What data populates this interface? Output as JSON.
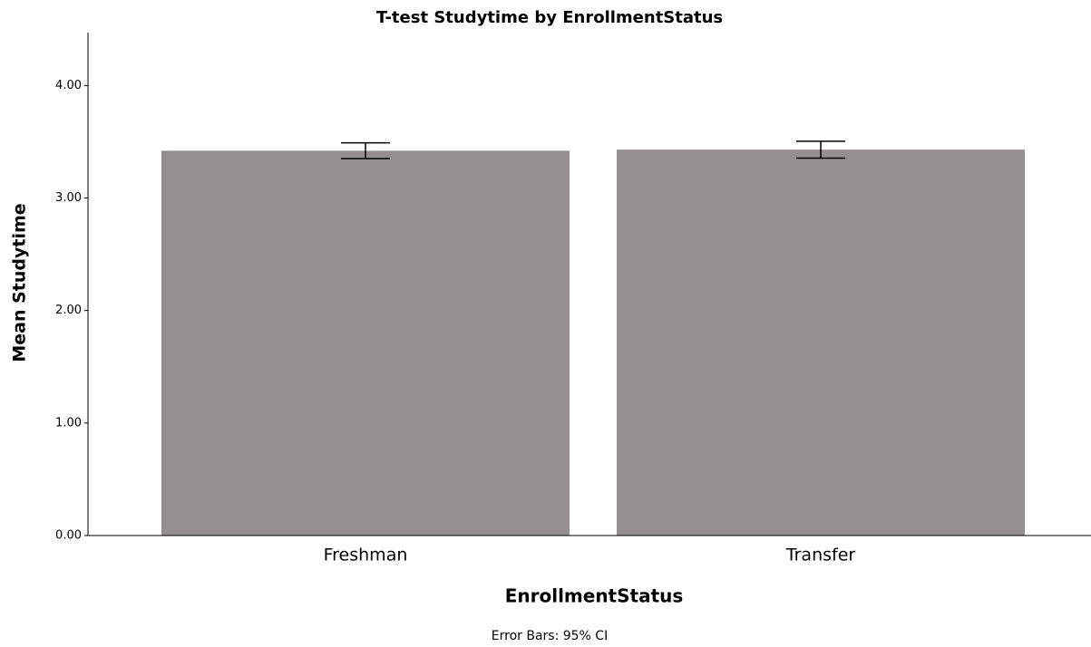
{
  "chart_data": {
    "type": "bar",
    "title": "T-test Studytime by EnrollmentStatus",
    "x_label": "EnrollmentStatus",
    "y_label": "Mean Studytime",
    "annotation": "Error Bars: 95% CI",
    "categories": [
      "Freshman",
      "Transfer"
    ],
    "values": [
      3.42,
      3.43
    ],
    "errors": [
      0.07,
      0.075
    ],
    "color": "#938f8e",
    "ylim": [
      0,
      4.47
    ],
    "yticks": [
      {
        "value": 0,
        "label": "0.00"
      },
      {
        "value": 1,
        "label": "1.00"
      },
      {
        "value": 2,
        "label": "2.00"
      },
      {
        "value": 3,
        "label": "3.00"
      },
      {
        "value": 4,
        "label": "4.00"
      }
    ],
    "grid": false
  }
}
